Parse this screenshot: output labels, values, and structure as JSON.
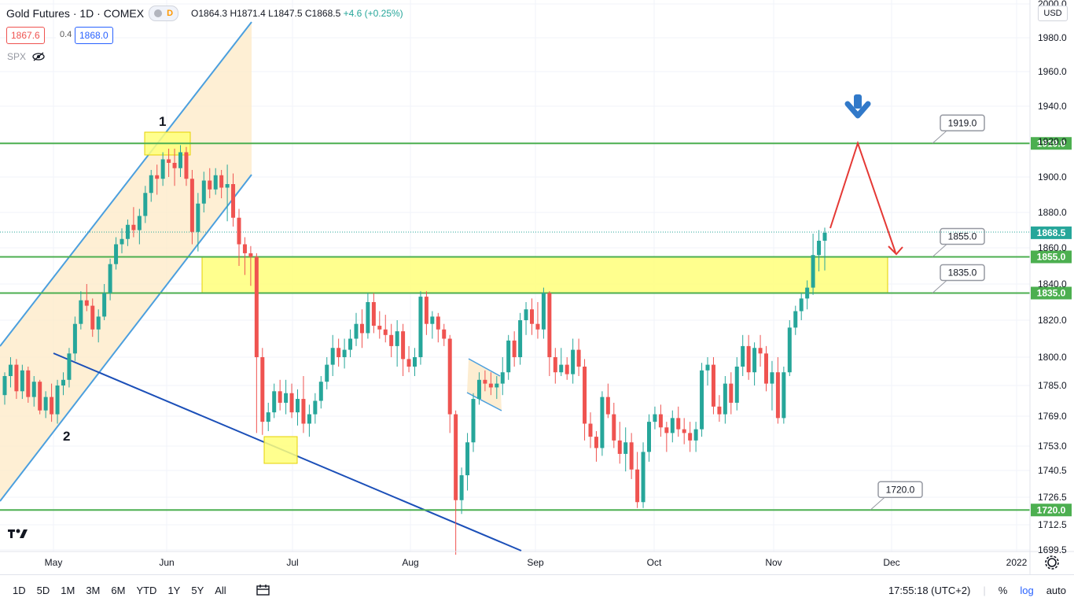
{
  "header": {
    "symbol": "Gold Futures · 1D · COMEX",
    "badge": "D",
    "o": "O1864.3",
    "h": "H1871.4",
    "l": "L1847.5",
    "c": "C1868.5",
    "chg": "+4.6 (+0.25%)",
    "sell_price": "1867.6",
    "spread": "0.4",
    "buy_price": "1868.0",
    "indicator": "SPX",
    "currency": "USD"
  },
  "toolbar": {
    "ranges": [
      "1D",
      "5D",
      "1M",
      "3M",
      "6M",
      "YTD",
      "1Y",
      "5Y",
      "All"
    ],
    "clock": "17:55:18 (UTC+2)",
    "percent": "%",
    "log": "log",
    "auto": "auto"
  },
  "colors": {
    "up": "#26a69a",
    "down": "#ef5350",
    "level": "#4caf50",
    "channel": "#4b9fde",
    "zone": "#ffff7a"
  },
  "chart_data": {
    "type": "candlestick",
    "title": "Gold Futures · 1D · COMEX",
    "ylim": [
      1697,
      2000
    ],
    "y_ticks": [
      "2000.0",
      "1980.0",
      "1960.0",
      "1940.0",
      "1920.0",
      "1900.0",
      "1880.0",
      "1860.0",
      "1840.0",
      "1820.0",
      "1800.0",
      "1785.0",
      "1769.0",
      "1753.0",
      "1740.5",
      "1726.5",
      "1712.5",
      "1699.5"
    ],
    "x_ticks": [
      "May",
      "Jun",
      "Jul",
      "Aug",
      "Sep",
      "Oct",
      "Nov",
      "Dec",
      "2022"
    ],
    "levels": [
      {
        "value": 1919.0,
        "label": "1919.0"
      },
      {
        "value": 1855.0,
        "label": "1855.0"
      },
      {
        "value": 1835.0,
        "label": "1835.0"
      },
      {
        "value": 1720.0,
        "label": "1720.0"
      }
    ],
    "current_price": {
      "value": 1868.5,
      "label": "1868.5"
    },
    "annotations": [
      "1",
      "2"
    ],
    "candles": [
      [
        1780,
        1792,
        1775,
        1790
      ],
      [
        1790,
        1800,
        1784,
        1796
      ],
      [
        1796,
        1799,
        1778,
        1782
      ],
      [
        1782,
        1796,
        1778,
        1793
      ],
      [
        1793,
        1795,
        1776,
        1779
      ],
      [
        1779,
        1790,
        1774,
        1787
      ],
      [
        1787,
        1788,
        1770,
        1772
      ],
      [
        1772,
        1782,
        1768,
        1779
      ],
      [
        1779,
        1786,
        1766,
        1770
      ],
      [
        1770,
        1788,
        1765,
        1785
      ],
      [
        1785,
        1792,
        1780,
        1788
      ],
      [
        1788,
        1805,
        1784,
        1802
      ],
      [
        1802,
        1822,
        1798,
        1818
      ],
      [
        1818,
        1836,
        1815,
        1831
      ],
      [
        1831,
        1840,
        1825,
        1828
      ],
      [
        1828,
        1832,
        1811,
        1815
      ],
      [
        1815,
        1826,
        1808,
        1822
      ],
      [
        1822,
        1840,
        1820,
        1835
      ],
      [
        1835,
        1854,
        1831,
        1851
      ],
      [
        1851,
        1866,
        1848,
        1862
      ],
      [
        1862,
        1871,
        1857,
        1865
      ],
      [
        1865,
        1876,
        1861,
        1873
      ],
      [
        1873,
        1883,
        1866,
        1870
      ],
      [
        1870,
        1882,
        1862,
        1878
      ],
      [
        1878,
        1895,
        1874,
        1891
      ],
      [
        1891,
        1904,
        1886,
        1901
      ],
      [
        1901,
        1907,
        1890,
        1899
      ],
      [
        1899,
        1914,
        1895,
        1910
      ],
      [
        1910,
        1916,
        1900,
        1908
      ],
      [
        1908,
        1916,
        1895,
        1905
      ],
      [
        1905,
        1918,
        1900,
        1914
      ],
      [
        1914,
        1917,
        1895,
        1899
      ],
      [
        1899,
        1904,
        1862,
        1869
      ],
      [
        1869,
        1891,
        1858,
        1885
      ],
      [
        1885,
        1903,
        1880,
        1898
      ],
      [
        1898,
        1905,
        1888,
        1893
      ],
      [
        1893,
        1905,
        1890,
        1901
      ],
      [
        1901,
        1904,
        1888,
        1894
      ],
      [
        1894,
        1907,
        1875,
        1896
      ],
      [
        1896,
        1902,
        1872,
        1877
      ],
      [
        1877,
        1882,
        1850,
        1862
      ],
      [
        1862,
        1866,
        1845,
        1857
      ],
      [
        1857,
        1861,
        1839,
        1855
      ],
      [
        1855,
        1857,
        1760,
        1800
      ],
      [
        1800,
        1805,
        1759,
        1766
      ],
      [
        1766,
        1776,
        1761,
        1771
      ],
      [
        1771,
        1786,
        1768,
        1782
      ],
      [
        1782,
        1788,
        1772,
        1776
      ],
      [
        1776,
        1788,
        1770,
        1781
      ],
      [
        1781,
        1786,
        1768,
        1771
      ],
      [
        1771,
        1783,
        1764,
        1778
      ],
      [
        1778,
        1790,
        1760,
        1765
      ],
      [
        1765,
        1775,
        1758,
        1770
      ],
      [
        1770,
        1781,
        1765,
        1777
      ],
      [
        1777,
        1790,
        1773,
        1787
      ],
      [
        1787,
        1800,
        1783,
        1796
      ],
      [
        1796,
        1812,
        1790,
        1805
      ],
      [
        1805,
        1810,
        1795,
        1800
      ],
      [
        1800,
        1810,
        1794,
        1804
      ],
      [
        1804,
        1815,
        1800,
        1810
      ],
      [
        1810,
        1824,
        1806,
        1818
      ],
      [
        1818,
        1826,
        1805,
        1813
      ],
      [
        1813,
        1835,
        1810,
        1830
      ],
      [
        1830,
        1835,
        1813,
        1817
      ],
      [
        1817,
        1825,
        1810,
        1815
      ],
      [
        1815,
        1823,
        1808,
        1812
      ],
      [
        1812,
        1818,
        1800,
        1806
      ],
      [
        1806,
        1820,
        1795,
        1814
      ],
      [
        1814,
        1818,
        1790,
        1799
      ],
      [
        1799,
        1806,
        1792,
        1795
      ],
      [
        1795,
        1805,
        1790,
        1800
      ],
      [
        1800,
        1836,
        1796,
        1833
      ],
      [
        1833,
        1836,
        1812,
        1818
      ],
      [
        1818,
        1825,
        1810,
        1822
      ],
      [
        1822,
        1824,
        1808,
        1815
      ],
      [
        1815,
        1818,
        1806,
        1810
      ],
      [
        1810,
        1812,
        1760,
        1770
      ],
      [
        1770,
        1772,
        1697,
        1725
      ],
      [
        1725,
        1742,
        1718,
        1738
      ],
      [
        1738,
        1760,
        1730,
        1755
      ],
      [
        1755,
        1781,
        1750,
        1778
      ],
      [
        1778,
        1792,
        1775,
        1788
      ],
      [
        1788,
        1793,
        1782,
        1786
      ],
      [
        1786,
        1792,
        1780,
        1784
      ],
      [
        1784,
        1790,
        1778,
        1786
      ],
      [
        1786,
        1800,
        1780,
        1792
      ],
      [
        1792,
        1812,
        1788,
        1809
      ],
      [
        1809,
        1814,
        1795,
        1800
      ],
      [
        1800,
        1824,
        1796,
        1820
      ],
      [
        1820,
        1830,
        1812,
        1826
      ],
      [
        1826,
        1832,
        1812,
        1818
      ],
      [
        1818,
        1830,
        1810,
        1815
      ],
      [
        1815,
        1838,
        1810,
        1835
      ],
      [
        1835,
        1836,
        1790,
        1800
      ],
      [
        1800,
        1805,
        1786,
        1792
      ],
      [
        1792,
        1805,
        1790,
        1796
      ],
      [
        1796,
        1800,
        1788,
        1791
      ],
      [
        1791,
        1810,
        1786,
        1804
      ],
      [
        1804,
        1810,
        1790,
        1795
      ],
      [
        1795,
        1799,
        1756,
        1765
      ],
      [
        1765,
        1771,
        1752,
        1758
      ],
      [
        1758,
        1761,
        1745,
        1752
      ],
      [
        1752,
        1782,
        1748,
        1779
      ],
      [
        1779,
        1786,
        1768,
        1770
      ],
      [
        1770,
        1776,
        1752,
        1756
      ],
      [
        1756,
        1766,
        1744,
        1749
      ],
      [
        1749,
        1763,
        1740,
        1755
      ],
      [
        1755,
        1760,
        1736,
        1741
      ],
      [
        1741,
        1750,
        1721,
        1724
      ],
      [
        1724,
        1755,
        1721,
        1750
      ],
      [
        1750,
        1770,
        1745,
        1766
      ],
      [
        1766,
        1774,
        1762,
        1770
      ],
      [
        1770,
        1775,
        1758,
        1763
      ],
      [
        1763,
        1766,
        1750,
        1760
      ],
      [
        1760,
        1772,
        1755,
        1768
      ],
      [
        1768,
        1774,
        1758,
        1762
      ],
      [
        1762,
        1768,
        1754,
        1760
      ],
      [
        1760,
        1766,
        1750,
        1756
      ],
      [
        1756,
        1766,
        1750,
        1762
      ],
      [
        1762,
        1797,
        1758,
        1793
      ],
      [
        1793,
        1800,
        1785,
        1796
      ],
      [
        1796,
        1800,
        1770,
        1774
      ],
      [
        1774,
        1780,
        1766,
        1770
      ],
      [
        1770,
        1790,
        1765,
        1786
      ],
      [
        1786,
        1792,
        1770,
        1776
      ],
      [
        1776,
        1800,
        1772,
        1795
      ],
      [
        1795,
        1812,
        1790,
        1806
      ],
      [
        1806,
        1812,
        1788,
        1792
      ],
      [
        1792,
        1808,
        1785,
        1805
      ],
      [
        1805,
        1812,
        1795,
        1802
      ],
      [
        1802,
        1806,
        1782,
        1786
      ],
      [
        1786,
        1798,
        1772,
        1792
      ],
      [
        1792,
        1800,
        1765,
        1768
      ],
      [
        1768,
        1795,
        1765,
        1792
      ],
      [
        1792,
        1820,
        1790,
        1816
      ],
      [
        1816,
        1828,
        1812,
        1825
      ],
      [
        1825,
        1835,
        1820,
        1832
      ],
      [
        1832,
        1842,
        1826,
        1838
      ],
      [
        1838,
        1868,
        1834,
        1856
      ],
      [
        1856,
        1870,
        1847,
        1864
      ],
      [
        1864,
        1871.4,
        1847.5,
        1868.5
      ]
    ]
  }
}
